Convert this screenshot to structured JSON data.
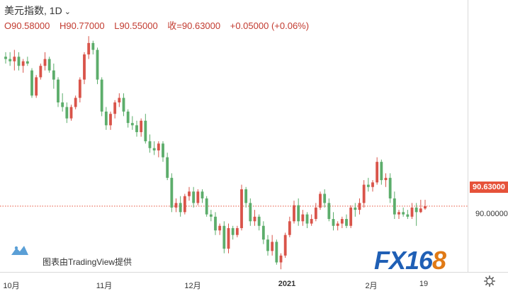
{
  "header": {
    "title": "美元指数, 1D",
    "caret": "⌄"
  },
  "ohlc": {
    "open": "O90.58000",
    "high": "H90.77000",
    "low": "L90.55000",
    "close": "收=90.63000",
    "change": "+0.05000 (+0.06%)"
  },
  "price_axis": {
    "tag": "90.63000",
    "tick_90": "90.00000"
  },
  "time_axis": {
    "labels": [
      "10月",
      "11月",
      "12月",
      "2021",
      "2月",
      "19"
    ]
  },
  "credit": {
    "text": "图表由TradingView提供"
  },
  "logo": {
    "fx": "FX16",
    "eight": "8"
  },
  "colors": {
    "up": "#d9544a",
    "down": "#5cad6b",
    "price_line": "#e6523a",
    "accent": "#1f5fb5"
  },
  "chart_data": {
    "type": "candlestick",
    "symbol": "美元指数",
    "interval": "1D",
    "last_close": 90.63,
    "ylim": [
      89.3,
      94.6
    ],
    "x_labels": [
      "10月",
      "11月",
      "12月",
      "2021",
      "2月",
      "19"
    ],
    "candles": [
      [
        93.9,
        94.0,
        93.75,
        93.85
      ],
      [
        93.85,
        94.0,
        93.7,
        93.8
      ],
      [
        93.8,
        94.05,
        93.6,
        93.9
      ],
      [
        93.9,
        94.0,
        93.6,
        93.7
      ],
      [
        93.7,
        93.85,
        93.55,
        93.8
      ],
      [
        93.8,
        93.9,
        93.7,
        93.75
      ],
      [
        93.6,
        93.65,
        93.0,
        93.05
      ],
      [
        93.05,
        93.5,
        93.0,
        93.45
      ],
      [
        93.45,
        93.75,
        93.4,
        93.7
      ],
      [
        93.7,
        94.0,
        93.6,
        93.85
      ],
      [
        93.85,
        93.9,
        93.55,
        93.6
      ],
      [
        93.6,
        93.75,
        93.2,
        93.4
      ],
      [
        93.4,
        93.45,
        92.8,
        92.9
      ],
      [
        92.9,
        93.1,
        92.7,
        92.8
      ],
      [
        92.8,
        92.9,
        92.45,
        92.55
      ],
      [
        92.55,
        92.85,
        92.5,
        92.8
      ],
      [
        92.8,
        93.05,
        92.75,
        93.0
      ],
      [
        93.0,
        93.45,
        92.9,
        93.4
      ],
      [
        93.4,
        94.0,
        93.3,
        93.95
      ],
      [
        93.95,
        94.35,
        93.85,
        94.2
      ],
      [
        94.2,
        94.25,
        93.95,
        94.05
      ],
      [
        94.05,
        94.1,
        93.3,
        93.4
      ],
      [
        93.4,
        93.45,
        92.6,
        92.7
      ],
      [
        92.7,
        92.8,
        92.3,
        92.4
      ],
      [
        92.4,
        92.7,
        92.3,
        92.65
      ],
      [
        92.65,
        92.95,
        92.55,
        92.9
      ],
      [
        92.9,
        93.1,
        92.8,
        93.0
      ],
      [
        93.0,
        93.1,
        92.6,
        92.7
      ],
      [
        92.7,
        92.75,
        92.35,
        92.45
      ],
      [
        92.45,
        92.6,
        92.3,
        92.4
      ],
      [
        92.4,
        92.5,
        92.15,
        92.25
      ],
      [
        92.25,
        92.55,
        92.15,
        92.5
      ],
      [
        92.5,
        92.65,
        92.0,
        92.05
      ],
      [
        92.05,
        92.2,
        91.8,
        91.9
      ],
      [
        91.9,
        92.05,
        91.75,
        91.85
      ],
      [
        91.85,
        92.05,
        91.7,
        92.0
      ],
      [
        92.0,
        92.05,
        91.6,
        91.7
      ],
      [
        91.7,
        91.8,
        91.2,
        91.25
      ],
      [
        91.25,
        91.35,
        90.5,
        90.6
      ],
      [
        90.6,
        90.8,
        90.5,
        90.7
      ],
      [
        90.7,
        90.85,
        90.4,
        90.5
      ],
      [
        90.5,
        90.9,
        90.45,
        90.85
      ],
      [
        90.85,
        91.05,
        90.75,
        90.95
      ],
      [
        90.95,
        91.05,
        90.6,
        90.7
      ],
      [
        90.7,
        91.0,
        90.65,
        90.95
      ],
      [
        90.95,
        91.0,
        90.7,
        90.8
      ],
      [
        90.8,
        90.85,
        90.4,
        90.45
      ],
      [
        90.45,
        90.55,
        90.3,
        90.4
      ],
      [
        90.4,
        90.5,
        90.0,
        90.1
      ],
      [
        90.1,
        90.25,
        90.0,
        90.2
      ],
      [
        90.2,
        90.3,
        89.6,
        89.7
      ],
      [
        89.7,
        90.25,
        89.6,
        90.15
      ],
      [
        90.15,
        90.2,
        89.9,
        90.0
      ],
      [
        90.0,
        90.2,
        89.95,
        90.15
      ],
      [
        90.15,
        91.1,
        90.1,
        91.0
      ],
      [
        91.0,
        91.05,
        90.6,
        90.7
      ],
      [
        90.7,
        90.8,
        90.2,
        90.3
      ],
      [
        90.3,
        90.55,
        90.2,
        90.4
      ],
      [
        90.4,
        90.45,
        90.1,
        90.2
      ],
      [
        90.2,
        90.3,
        89.8,
        89.9
      ],
      [
        89.9,
        90.0,
        89.55,
        89.65
      ],
      [
        89.65,
        90.0,
        89.55,
        89.85
      ],
      [
        89.85,
        89.9,
        89.35,
        89.4
      ],
      [
        89.4,
        89.6,
        89.25,
        89.55
      ],
      [
        89.55,
        90.05,
        89.5,
        90.0
      ],
      [
        90.0,
        90.4,
        89.95,
        90.3
      ],
      [
        90.3,
        90.75,
        90.25,
        90.65
      ],
      [
        90.65,
        90.8,
        90.2,
        90.3
      ],
      [
        90.3,
        90.55,
        90.2,
        90.45
      ],
      [
        90.45,
        90.5,
        90.15,
        90.25
      ],
      [
        90.25,
        90.45,
        90.2,
        90.35
      ],
      [
        90.35,
        90.7,
        90.3,
        90.6
      ],
      [
        90.6,
        90.95,
        90.55,
        90.9
      ],
      [
        90.9,
        91.0,
        90.6,
        90.7
      ],
      [
        90.7,
        90.8,
        90.3,
        90.35
      ],
      [
        90.35,
        90.5,
        90.1,
        90.2
      ],
      [
        90.2,
        90.3,
        90.1,
        90.25
      ],
      [
        90.25,
        90.4,
        90.15,
        90.35
      ],
      [
        90.35,
        90.45,
        90.15,
        90.2
      ],
      [
        90.2,
        90.65,
        90.15,
        90.6
      ],
      [
        90.6,
        90.7,
        90.4,
        90.55
      ],
      [
        90.55,
        90.8,
        90.45,
        90.7
      ],
      [
        90.7,
        91.2,
        90.6,
        91.1
      ],
      [
        91.1,
        91.25,
        90.95,
        91.05
      ],
      [
        91.05,
        91.2,
        90.95,
        91.15
      ],
      [
        91.15,
        91.7,
        91.1,
        91.6
      ],
      [
        91.6,
        91.65,
        91.1,
        91.2
      ],
      [
        91.2,
        91.35,
        91.05,
        91.25
      ],
      [
        91.25,
        91.35,
        90.7,
        90.8
      ],
      [
        90.8,
        90.95,
        90.35,
        90.45
      ],
      [
        90.45,
        90.55,
        90.35,
        90.5
      ],
      [
        90.5,
        90.6,
        90.4,
        90.45
      ],
      [
        90.45,
        90.55,
        90.35,
        90.4
      ],
      [
        90.4,
        90.7,
        90.35,
        90.6
      ],
      [
        90.6,
        90.7,
        90.2,
        90.5
      ],
      [
        90.5,
        90.77,
        90.48,
        90.58
      ],
      [
        90.58,
        90.77,
        90.55,
        90.63
      ]
    ]
  }
}
